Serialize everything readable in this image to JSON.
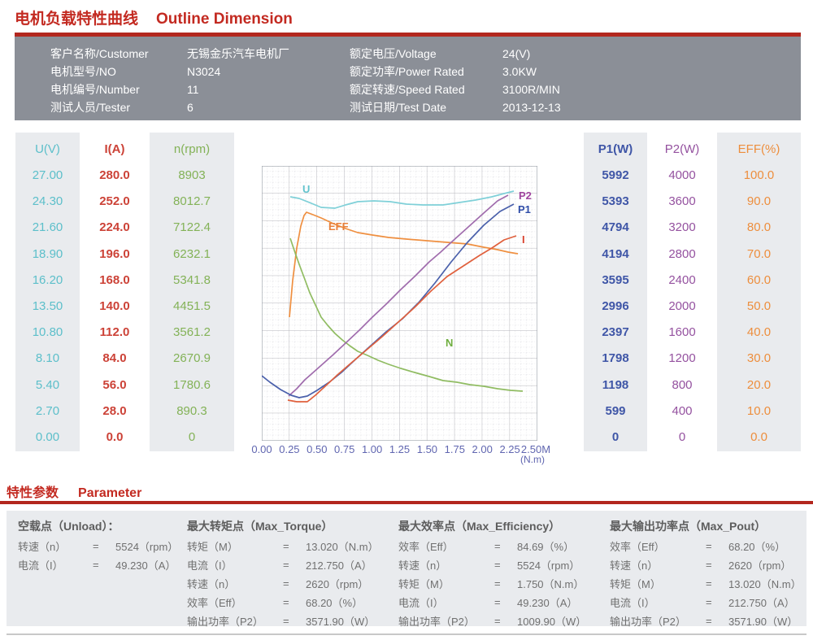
{
  "title": {
    "zh": "电机负载特性曲线",
    "en": "Outline Dimension"
  },
  "header": {
    "left_fields": [
      {
        "label": "客户名称/Customer",
        "value": "无锡金乐汽车电机厂"
      },
      {
        "label": "电机型号/NO",
        "value": "N3024"
      },
      {
        "label": "电机编号/Number",
        "value": "11"
      },
      {
        "label": "测试人员/Tester",
        "value": "6"
      }
    ],
    "right_fields": [
      {
        "label": "额定电压/Voltage",
        "value": "24(V)"
      },
      {
        "label": "额定功率/Power Rated",
        "value": "3.0KW"
      },
      {
        "label": "额定转速/Speed Rated",
        "value": "3100R/MIN"
      },
      {
        "label": "测试日期/Test Date",
        "value": "2013-12-13"
      }
    ]
  },
  "scale_table": {
    "note": "Each column is the y-axis tick scale (top to bottom) for the matching curve in the chart.",
    "columns": [
      {
        "id": "u",
        "header": "U(V)",
        "color": "#5cbfca",
        "panel": true,
        "values": [
          "27.00",
          "24.30",
          "21.60",
          "18.90",
          "16.20",
          "13.50",
          "10.80",
          "8.10",
          "5.40",
          "2.70",
          "0.00"
        ]
      },
      {
        "id": "i",
        "header": "I(A)",
        "color": "#cc4237",
        "panel": false,
        "values": [
          "280.0",
          "252.0",
          "224.0",
          "196.0",
          "168.0",
          "140.0",
          "112.0",
          "84.0",
          "56.0",
          "28.0",
          "0.0"
        ]
      },
      {
        "id": "n",
        "header": "n(rpm)",
        "color": "#83b257",
        "panel": true,
        "values": [
          "8903",
          "8012.7",
          "7122.4",
          "6232.1",
          "5341.8",
          "4451.5",
          "3561.2",
          "2670.9",
          "1780.6",
          "890.3",
          "0"
        ]
      },
      {
        "id": "p1",
        "header": "P1(W)",
        "color": "#3f56a7",
        "panel": true,
        "values": [
          "5992",
          "5393",
          "4794",
          "4194",
          "3595",
          "2996",
          "2397",
          "1798",
          "1198",
          "599",
          "0"
        ]
      },
      {
        "id": "p2",
        "header": "P2(W)",
        "color": "#94519f",
        "panel": false,
        "values": [
          "4000",
          "3600",
          "3200",
          "2800",
          "2400",
          "2000",
          "1600",
          "1200",
          "800",
          "400",
          "0"
        ]
      },
      {
        "id": "eff",
        "header": "EFF(%)",
        "color": "#ed8e3d",
        "panel": true,
        "values": [
          "100.0",
          "90.0",
          "80.0",
          "70.0",
          "60.0",
          "50.0",
          "40.0",
          "30.0",
          "20.0",
          "10.0",
          "0.0"
        ]
      }
    ]
  },
  "chart_data": {
    "type": "line",
    "title": "Motor load characteristic curves (U, I, n, P1, P2, EFF vs torque)",
    "xlabel": "(N.m)",
    "x_ticks": [
      "0.00",
      "0.25",
      "0.50",
      "0.75",
      "1.00",
      "1.25",
      "1.50",
      "1.75",
      "2.00",
      "2.25",
      "2.50M"
    ],
    "x_range": [
      0.0,
      2.5
    ],
    "grid": {
      "major_divisions": [
        10,
        10
      ],
      "minor_per_major": 5,
      "major_color": "#b6b6bc",
      "minor_color": "#d6d6dc"
    },
    "legend_position": "labels on curves",
    "y_axes_note": "Six overlaid y-axes; tick values per curve listed in scale_table.columns from chart top (row 1) to bottom (0).",
    "series": [
      {
        "name": "U",
        "color": "#7fd0d8",
        "label_color": "#62c3cd",
        "label_pos": [
          50,
          33
        ],
        "points": [
          [
            35,
            38
          ],
          [
            46,
            40
          ],
          [
            61,
            46
          ],
          [
            73,
            51
          ],
          [
            90,
            52
          ],
          [
            103,
            48
          ],
          [
            118,
            44
          ],
          [
            138,
            43
          ],
          [
            158,
            44
          ],
          [
            178,
            47
          ],
          [
            198,
            48
          ],
          [
            223,
            48
          ],
          [
            243,
            45
          ],
          [
            263,
            42
          ],
          [
            283,
            38
          ],
          [
            298,
            34
          ],
          [
            310,
            31
          ]
        ]
      },
      {
        "name": "EFF",
        "color": "#ef8f40",
        "label_color": "#e8803a",
        "label_pos": [
          82,
          79
        ],
        "points": [
          [
            34,
            186
          ],
          [
            38,
            141
          ],
          [
            43,
            101
          ],
          [
            48,
            74
          ],
          [
            52,
            61
          ],
          [
            55,
            57
          ],
          [
            63,
            60
          ],
          [
            73,
            64
          ],
          [
            88,
            71
          ],
          [
            103,
            77
          ],
          [
            118,
            82
          ],
          [
            136,
            85
          ],
          [
            156,
            88
          ],
          [
            178,
            90
          ],
          [
            203,
            92
          ],
          [
            228,
            94
          ],
          [
            253,
            96
          ],
          [
            273,
            100
          ],
          [
            290,
            103
          ],
          [
            303,
            106
          ],
          [
            315,
            108
          ]
        ]
      },
      {
        "name": "N",
        "color": "#90bc62",
        "label_color": "#6fae3f",
        "label_pos": [
          226,
          222
        ],
        "points": [
          [
            35,
            89
          ],
          [
            40,
            104
          ],
          [
            46,
            121
          ],
          [
            52,
            137
          ],
          [
            59,
            156
          ],
          [
            66,
            171
          ],
          [
            73,
            186
          ],
          [
            81,
            196
          ],
          [
            90,
            206
          ],
          [
            99,
            214
          ],
          [
            108,
            221
          ],
          [
            118,
            228
          ],
          [
            130,
            233
          ],
          [
            143,
            239
          ],
          [
            156,
            244
          ],
          [
            171,
            249
          ],
          [
            188,
            254
          ],
          [
            206,
            259
          ],
          [
            223,
            264
          ],
          [
            240,
            266
          ],
          [
            256,
            269
          ],
          [
            273,
            271
          ],
          [
            290,
            274
          ],
          [
            306,
            276
          ],
          [
            321,
            277
          ]
        ]
      },
      {
        "name": "P2",
        "color": "#a06cad",
        "label_color": "#a0459f",
        "label_pos": [
          316,
          41
        ],
        "points": [
          [
            33,
            283
          ],
          [
            43,
            274
          ],
          [
            53,
            263
          ],
          [
            70,
            248
          ],
          [
            88,
            232
          ],
          [
            103,
            218
          ],
          [
            120,
            202
          ],
          [
            136,
            186
          ],
          [
            153,
            170
          ],
          [
            171,
            152
          ],
          [
            188,
            136
          ],
          [
            206,
            118
          ],
          [
            220,
            106
          ],
          [
            233,
            94
          ],
          [
            253,
            76
          ],
          [
            273,
            58
          ],
          [
            290,
            43
          ],
          [
            303,
            36
          ]
        ]
      },
      {
        "name": "P1",
        "color": "#4a60ab",
        "label_color": "#2f4da8",
        "label_pos": [
          315,
          58
        ],
        "points": [
          [
            0,
            258
          ],
          [
            10,
            266
          ],
          [
            23,
            275
          ],
          [
            36,
            282
          ],
          [
            46,
            285
          ],
          [
            56,
            283
          ],
          [
            68,
            276
          ],
          [
            83,
            266
          ],
          [
            98,
            254
          ],
          [
            113,
            240
          ],
          [
            133,
            222
          ],
          [
            153,
            204
          ],
          [
            173,
            188
          ],
          [
            193,
            168
          ],
          [
            213,
            144
          ],
          [
            233,
            118
          ],
          [
            253,
            94
          ],
          [
            273,
            73
          ],
          [
            293,
            56
          ],
          [
            310,
            47
          ]
        ]
      },
      {
        "name": "I",
        "color": "#e0603d",
        "label_color": "#d9432f",
        "label_pos": [
          320,
          95
        ],
        "points": [
          [
            32,
            288
          ],
          [
            43,
            290
          ],
          [
            56,
            290
          ],
          [
            66,
            282
          ],
          [
            78,
            271
          ],
          [
            93,
            257
          ],
          [
            108,
            244
          ],
          [
            128,
            227
          ],
          [
            148,
            210
          ],
          [
            168,
            192
          ],
          [
            188,
            174
          ],
          [
            208,
            154
          ],
          [
            228,
            136
          ],
          [
            248,
            123
          ],
          [
            268,
            110
          ],
          [
            283,
            101
          ],
          [
            298,
            91
          ],
          [
            313,
            86
          ]
        ]
      }
    ]
  },
  "x_axis_unit": "(N.m)",
  "parameters": {
    "title_zh": "特性参数",
    "title_en": "Parameter",
    "eq": "=",
    "sections": [
      {
        "title": "空载点（Unload）：",
        "rows": [
          {
            "label": "转速（n）",
            "value": "5524（rpm）"
          },
          {
            "label": "电流（I）",
            "value": "49.230（A）"
          }
        ]
      },
      {
        "title": "最大转矩点（Max_Torque）",
        "rows": [
          {
            "label": "转矩（M）",
            "value": "13.020（N.m）"
          },
          {
            "label": "电流（I）",
            "value": "212.750（A）"
          },
          {
            "label": "转速（n）",
            "value": "2620（rpm）"
          },
          {
            "label": "效率（Eff）",
            "value": "68.20（%）"
          },
          {
            "label": "输出功率（P2）",
            "value": "3571.90（W）"
          }
        ]
      },
      {
        "title": "最大效率点（Max_Efficiency）",
        "rows": [
          {
            "label": "效率（Eff）",
            "value": "84.69（%）"
          },
          {
            "label": "转速（n）",
            "value": "5524（rpm）"
          },
          {
            "label": "转矩（M）",
            "value": "1.750（N.m）"
          },
          {
            "label": "电流（I）",
            "value": "49.230（A）"
          },
          {
            "label": "输出功率（P2）",
            "value": "1009.90（W）"
          }
        ]
      },
      {
        "title": "最大输出功率点（Max_Pout）",
        "rows": [
          {
            "label": "效率（Eff）",
            "value": "68.20（%）"
          },
          {
            "label": "转速（n）",
            "value": "2620（rpm）"
          },
          {
            "label": "转矩（M）",
            "value": "13.020（N.m）"
          },
          {
            "label": "电流（I）",
            "value": "212.750（A）"
          },
          {
            "label": "输出功率（P2）",
            "value": "3571.90（W）"
          }
        ]
      }
    ]
  }
}
